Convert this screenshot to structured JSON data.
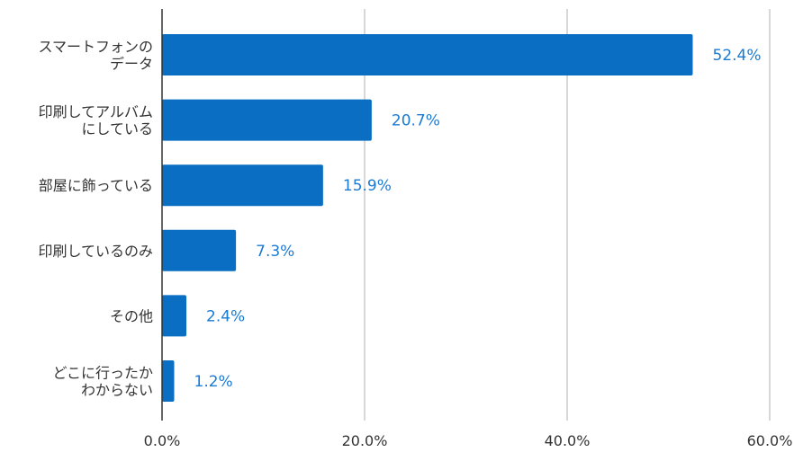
{
  "chart_data": {
    "type": "bar",
    "orientation": "horizontal",
    "categories": [
      [
        "スマートフォンの",
        "データ"
      ],
      [
        "印刷してアルバム",
        "にしている"
      ],
      [
        "部屋に飾っている"
      ],
      [
        "印刷しているのみ"
      ],
      [
        "その他"
      ],
      [
        "どこに行ったか",
        "わからない"
      ]
    ],
    "values": [
      52.4,
      20.7,
      15.9,
      7.3,
      2.4,
      1.2
    ],
    "data_labels": [
      "52.4%",
      "20.7%",
      "15.9%",
      "7.3%",
      "2.4%",
      "1.2%"
    ],
    "x_ticks": [
      "0.0%",
      "20.0%",
      "40.0%",
      "60.0%"
    ],
    "xlim": [
      0,
      60
    ],
    "grid": true,
    "legend": "none",
    "colors": {
      "bar": "#0a6fc2",
      "label": "#1a7bd4",
      "grid": "#cccccc",
      "axis": "#333333"
    }
  }
}
